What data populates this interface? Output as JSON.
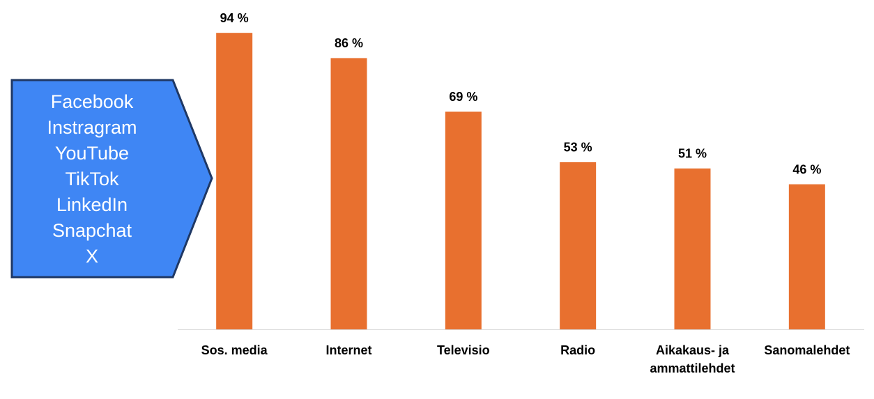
{
  "chart_data": {
    "type": "bar",
    "categories": [
      "Sos. media",
      "Internet",
      "Televisio",
      "Radio",
      "Aikakaus- ja ammattilehdet",
      "Sanomalehdet"
    ],
    "values": [
      94,
      86,
      69,
      53,
      51,
      46
    ],
    "value_labels": [
      "94 %",
      "86 %",
      "69 %",
      "53 %",
      "51 %",
      "46 %"
    ],
    "color": "#e8702f",
    "ylim": [
      0,
      100
    ],
    "callout": [
      "Facebook",
      "Instragram",
      "YouTube",
      "TikTok",
      "LinkedIn",
      "Snapchat",
      "X"
    ]
  }
}
